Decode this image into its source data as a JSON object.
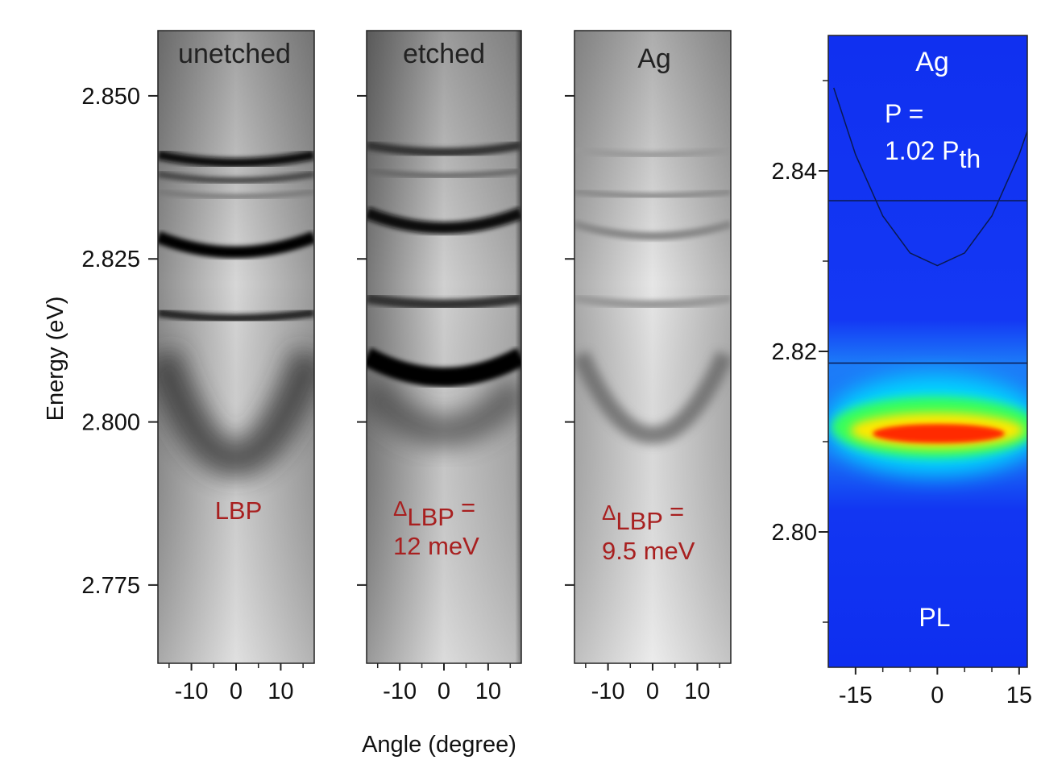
{
  "chart_data": [
    {
      "type": "image",
      "title": "unetched",
      "ylabel": "Energy (eV)",
      "xlim": [
        -17.5,
        17.5
      ],
      "ylim": [
        2.763,
        2.86
      ],
      "xticks": [
        -10,
        0,
        10
      ],
      "xminor": [
        -15,
        -5,
        5,
        15
      ],
      "yticks": [
        {
          "value": 2.85,
          "label": "2.850"
        },
        2.825,
        {
          "value": 2.8,
          "label": "2.800"
        },
        2.775
      ],
      "ytick_labels": true,
      "annotation": {
        "text": "LBP"
      }
    },
    {
      "type": "image",
      "title": "etched",
      "xlabel": "Angle (degree)",
      "xlim": [
        -17.5,
        17.5
      ],
      "ylim": [
        2.763,
        2.86
      ],
      "xticks": [
        -10,
        0,
        10
      ],
      "xminor": [
        -15,
        -5,
        5,
        15
      ],
      "yticks": [
        2.85,
        2.825,
        2.8,
        2.775
      ],
      "ytick_labels": false,
      "annotation": {
        "symbol": "Δ",
        "subscript": "LBP",
        "relation": "=",
        "text": "12 meV"
      }
    },
    {
      "type": "image",
      "title": "Ag",
      "xlim": [
        -17.5,
        17.5
      ],
      "ylim": [
        2.763,
        2.86
      ],
      "xticks": [
        -10,
        0,
        10
      ],
      "xminor": [
        -15,
        -5,
        5,
        15
      ],
      "yticks": [
        2.85,
        2.825,
        2.8,
        2.775
      ],
      "ytick_labels": false,
      "annotation": {
        "symbol": "Δ",
        "subscript": "LBP",
        "relation": "=",
        "text": "9.5 meV"
      }
    },
    {
      "type": "heatmap",
      "title": "Ag",
      "xlim": [
        -20,
        16.5
      ],
      "ylim": [
        2.785,
        2.855
      ],
      "xticks": [
        -15,
        0,
        15
      ],
      "xminor": [
        -10,
        -5,
        5,
        10
      ],
      "yticks": [
        2.84,
        2.82,
        {
          "value": 2.8,
          "label": "2.80"
        }
      ],
      "yminor": [
        2.85,
        2.83,
        2.81,
        2.79
      ],
      "ytick_labels": true,
      "hlines": [
        2.8367,
        2.8187
      ],
      "curve": {
        "x": [
          -19,
          -15,
          -10,
          -5,
          0,
          5,
          10,
          15,
          16.5
        ],
        "y": [
          2.8492,
          2.8418,
          2.835,
          2.8309,
          2.8295,
          2.8309,
          2.835,
          2.8418,
          2.8444
        ]
      },
      "power_label": "P =",
      "power_value": "1.02 P",
      "power_subscript": "th",
      "corner_label": "PL"
    }
  ]
}
